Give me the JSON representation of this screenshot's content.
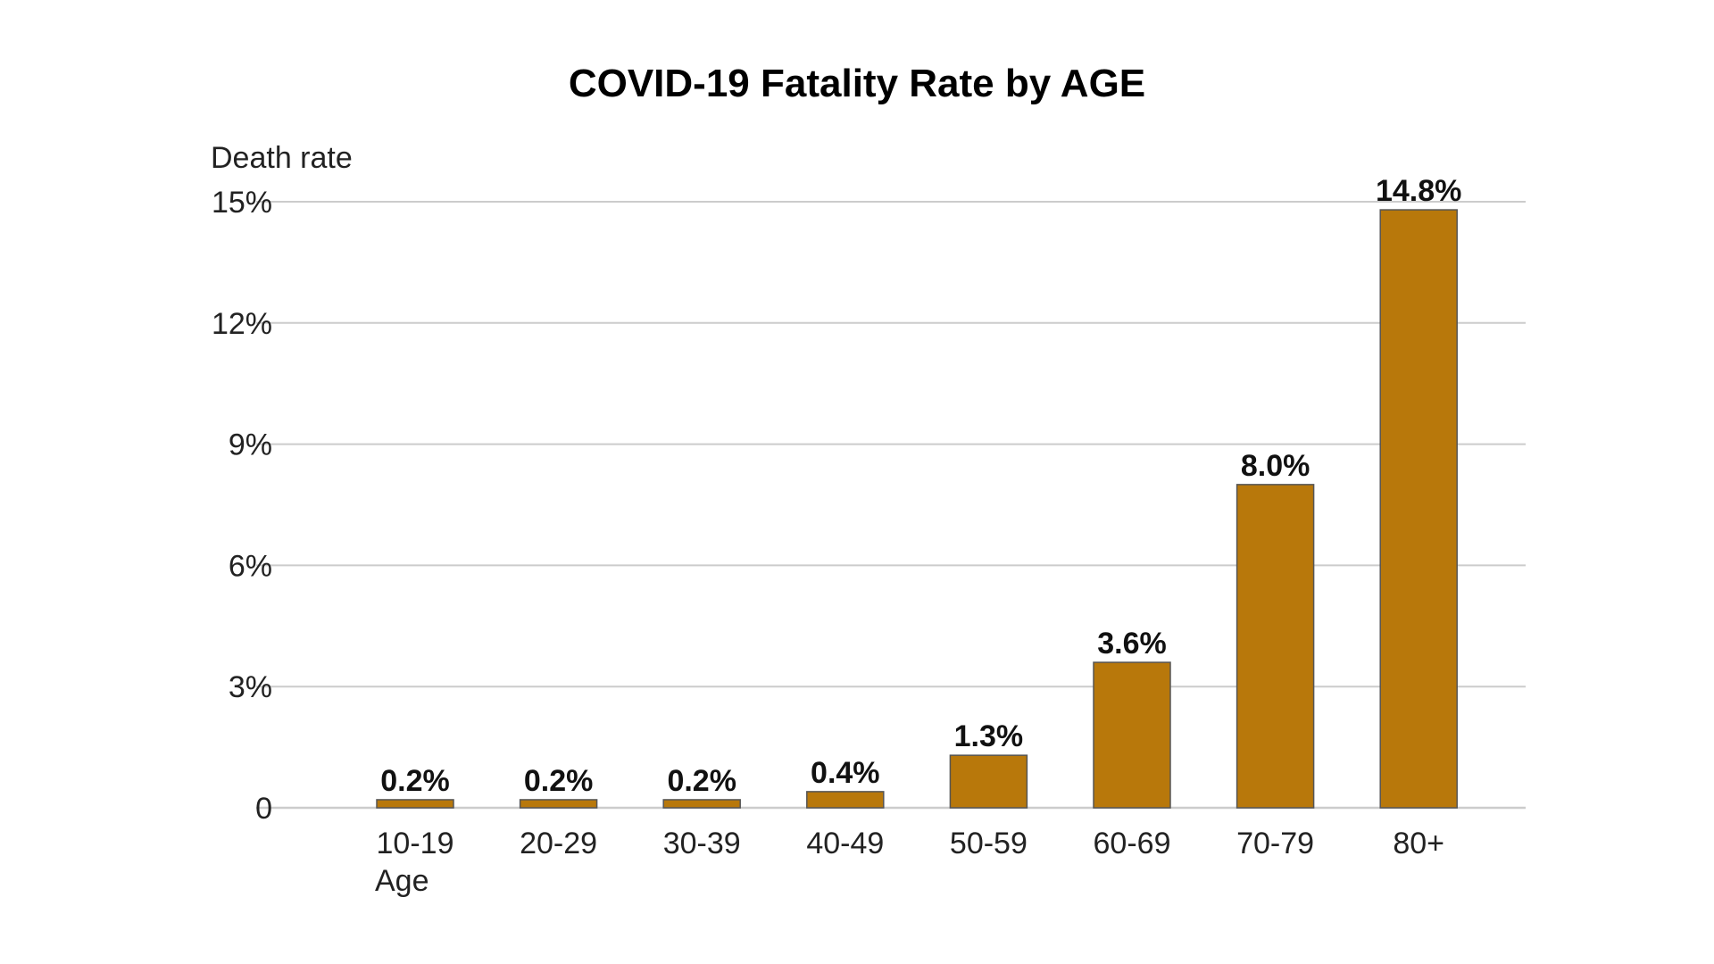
{
  "chart_data": {
    "type": "bar",
    "title": "COVID-19 Fatality Rate by AGE",
    "ylabel": "Death rate",
    "xlabel": "Age",
    "categories": [
      "10-19",
      "20-29",
      "30-39",
      "40-49",
      "50-59",
      "60-69",
      "70-79",
      "80+"
    ],
    "values": [
      0.2,
      0.2,
      0.2,
      0.4,
      1.3,
      3.6,
      8.0,
      14.8
    ],
    "value_labels": [
      "0.2%",
      "0.2%",
      "0.2%",
      "0.4%",
      "1.3%",
      "3.6%",
      "8.0%",
      "14.8%"
    ],
    "ylim": [
      0,
      15
    ],
    "yticks": [
      0,
      3,
      6,
      9,
      12,
      15
    ],
    "ytick_labels": [
      "0",
      "3%",
      "6%",
      "9%",
      "12%",
      "15%"
    ],
    "grid": true,
    "legend": "none",
    "bar_color": "#b8780b",
    "bar_edge_color": "#555555",
    "grid_color": "#cccccc"
  }
}
